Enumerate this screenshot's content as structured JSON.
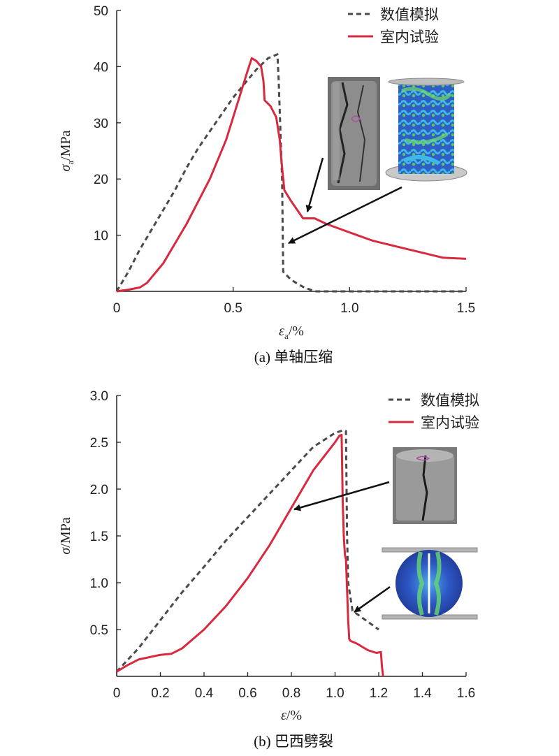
{
  "colors": {
    "sim": "#4a4a4a",
    "exp": "#d8293f",
    "axis": "#222222",
    "arrow": "#111111"
  },
  "chart_data": [
    {
      "type": "line",
      "caption": "(a) 单轴压缩",
      "xlabel_symbol": "ε",
      "xlabel_sub": "a",
      "xlabel_unit": "/%",
      "ylabel_symbol": "σ",
      "ylabel_sub": "a",
      "ylabel_unit": "/MPa",
      "xlim": [
        0,
        1.5
      ],
      "ylim": [
        0,
        50
      ],
      "x_ticks": [
        0,
        0.5,
        1.0,
        1.5
      ],
      "x_tick_labels": [
        "0",
        "0.5",
        "1.0",
        "1.5"
      ],
      "y_ticks": [
        10,
        20,
        30,
        40,
        50
      ],
      "y_tick_labels": [
        "10",
        "20",
        "30",
        "40",
        "50"
      ],
      "legend": [
        "数值模拟",
        "室内试验"
      ],
      "series": [
        {
          "name": "数值模拟",
          "style": "dashed",
          "x": [
            0,
            0.05,
            0.1,
            0.15,
            0.2,
            0.25,
            0.3,
            0.35,
            0.4,
            0.45,
            0.5,
            0.55,
            0.6,
            0.65,
            0.69,
            0.695,
            0.71,
            0.715,
            0.75,
            0.8,
            0.85,
            1.0,
            1.5
          ],
          "y": [
            0,
            3.5,
            7.5,
            11,
            14.5,
            18,
            22,
            25.5,
            28.5,
            31.5,
            34.5,
            37,
            39.5,
            41.5,
            42.2,
            38,
            20,
            3.5,
            2,
            0.8,
            0,
            0,
            0
          ]
        },
        {
          "name": "室内试验",
          "style": "solid",
          "x": [
            0,
            0.05,
            0.1,
            0.13,
            0.2,
            0.3,
            0.4,
            0.47,
            0.5,
            0.53,
            0.56,
            0.58,
            0.6,
            0.62,
            0.63,
            0.635,
            0.66,
            0.685,
            0.7,
            0.71,
            0.72,
            0.75,
            0.8,
            0.85,
            0.9,
            1.0,
            1.1,
            1.2,
            1.3,
            1.4,
            1.5
          ],
          "y": [
            0,
            0.3,
            0.7,
            1.5,
            5,
            12,
            20,
            27,
            31,
            35,
            39,
            41.5,
            41,
            40,
            37.5,
            34,
            33,
            31,
            27,
            22,
            18,
            16,
            13,
            13,
            12,
            10.5,
            9,
            8,
            7,
            6,
            5.8
          ]
        }
      ]
    },
    {
      "type": "line",
      "caption": "(b) 巴西劈裂",
      "xlabel_symbol": "ε",
      "xlabel_sub": "",
      "xlabel_unit": "/%",
      "ylabel_symbol": "σ",
      "ylabel_sub": "",
      "ylabel_unit": "/MPa",
      "xlim": [
        0,
        1.6
      ],
      "ylim": [
        0,
        3.0
      ],
      "x_ticks": [
        0,
        0.2,
        0.4,
        0.6,
        0.8,
        1.0,
        1.2,
        1.4,
        1.6
      ],
      "x_tick_labels": [
        "0",
        "0.2",
        "0.4",
        "0.6",
        "0.8",
        "1.0",
        "1.2",
        "1.4",
        "1.6"
      ],
      "y_ticks": [
        0.5,
        1.0,
        1.5,
        2.0,
        2.5,
        3.0
      ],
      "y_tick_labels": [
        "0.5",
        "1.0",
        "1.5",
        "2.0",
        "2.5",
        "3.0"
      ],
      "legend": [
        "数值模拟",
        "室内试验"
      ],
      "series": [
        {
          "name": "数值模拟",
          "style": "dashed",
          "x": [
            0,
            0.1,
            0.2,
            0.3,
            0.4,
            0.5,
            0.6,
            0.7,
            0.8,
            0.9,
            1.0,
            1.04,
            1.05,
            1.055,
            1.06,
            1.08,
            1.2
          ],
          "y": [
            0.05,
            0.3,
            0.6,
            0.9,
            1.17,
            1.45,
            1.7,
            1.95,
            2.2,
            2.45,
            2.6,
            2.63,
            2.62,
            1.5,
            1.0,
            0.7,
            0.5
          ]
        },
        {
          "name": "室内试验",
          "style": "solid",
          "x": [
            0,
            0.05,
            0.1,
            0.2,
            0.25,
            0.3,
            0.4,
            0.5,
            0.6,
            0.7,
            0.8,
            0.9,
            1.0,
            1.02,
            1.03,
            1.035,
            1.04,
            1.045,
            1.05,
            1.06,
            1.065,
            1.07,
            1.1,
            1.15,
            1.19,
            1.21,
            1.215,
            1.22
          ],
          "y": [
            0.05,
            0.12,
            0.18,
            0.23,
            0.24,
            0.3,
            0.5,
            0.75,
            1.05,
            1.4,
            1.8,
            2.2,
            2.5,
            2.57,
            2.58,
            1.9,
            1.5,
            1.3,
            1.25,
            0.6,
            0.4,
            0.38,
            0.35,
            0.28,
            0.25,
            0.26,
            0.1,
            0.0
          ]
        }
      ]
    }
  ],
  "insets": {
    "a_photo": "rock specimen photo",
    "a_model": "numerical cylinder model",
    "b_photo": "split disc photo",
    "b_model": "numerical disc model"
  }
}
